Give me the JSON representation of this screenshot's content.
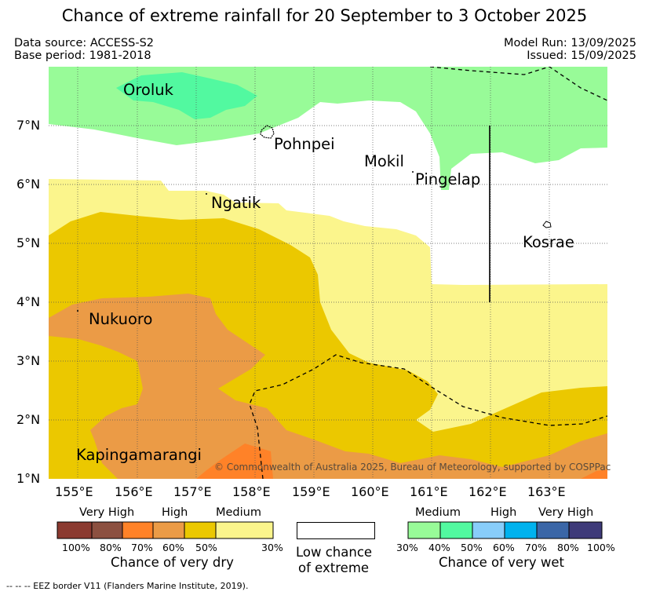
{
  "title": "Chance of extreme rainfall for 20 September to 3 October 2025",
  "data_source": "Data source: ACCESS-S2",
  "base_period": "Base period: 1981-2018",
  "model_run": "Model Run: 13/09/2025",
  "issued": "Issued: 15/09/2025",
  "copyright": "© Commonwealth of Australia 2025, Bureau of Meteorology, supported by COSPPac",
  "footnote": "--  --  -- EEZ border V11 (Flanders Marine Institute, 2019).",
  "map": {
    "lat_labels": [
      "7°N",
      "6°N",
      "5°N",
      "4°N",
      "3°N",
      "2°N",
      "1°N"
    ],
    "lon_labels": [
      "155°E",
      "156°E",
      "157°E",
      "158°E",
      "159°E",
      "160°E",
      "161°E",
      "162°E",
      "163°E"
    ],
    "places": {
      "oroluk": "Oroluk",
      "pohnpei": "Pohnpei",
      "mokil": "Mokil",
      "pingelap": "Pingelap",
      "ngatik": "Ngatik",
      "kosrae": "Kosrae",
      "nukuoro": "Nukuoro",
      "kapingamarangi": "Kapingamarangi"
    },
    "colors": {
      "dry_100": "#8b3a30",
      "dry_80": "#8c5040",
      "dry_70": "#ff8228",
      "dry_60": "#eb9b46",
      "dry_50": "#ebc800",
      "dry_30": "#fbf58c",
      "low": "#ffffff",
      "wet_30": "#98fb98",
      "wet_40": "#52f9a0",
      "wet_50": "#88cdfa",
      "wet_60": "#00b2ee",
      "wet_70": "#3a66a7",
      "wet_80": "#3e3a79"
    }
  },
  "legend": {
    "dry": {
      "headers": [
        "Very High",
        "High",
        "Medium"
      ],
      "ticks": [
        "100%",
        "80%",
        "70%",
        "60%",
        "50%",
        "30%"
      ],
      "caption": "Chance of very dry"
    },
    "low": {
      "caption_line1": "Low chance",
      "caption_line2": "of extreme"
    },
    "wet": {
      "headers": [
        "Medium",
        "High",
        "Very High"
      ],
      "ticks": [
        "30%",
        "40%",
        "50%",
        "60%",
        "70%",
        "80%",
        "100%"
      ],
      "caption": "Chance of very wet"
    }
  }
}
